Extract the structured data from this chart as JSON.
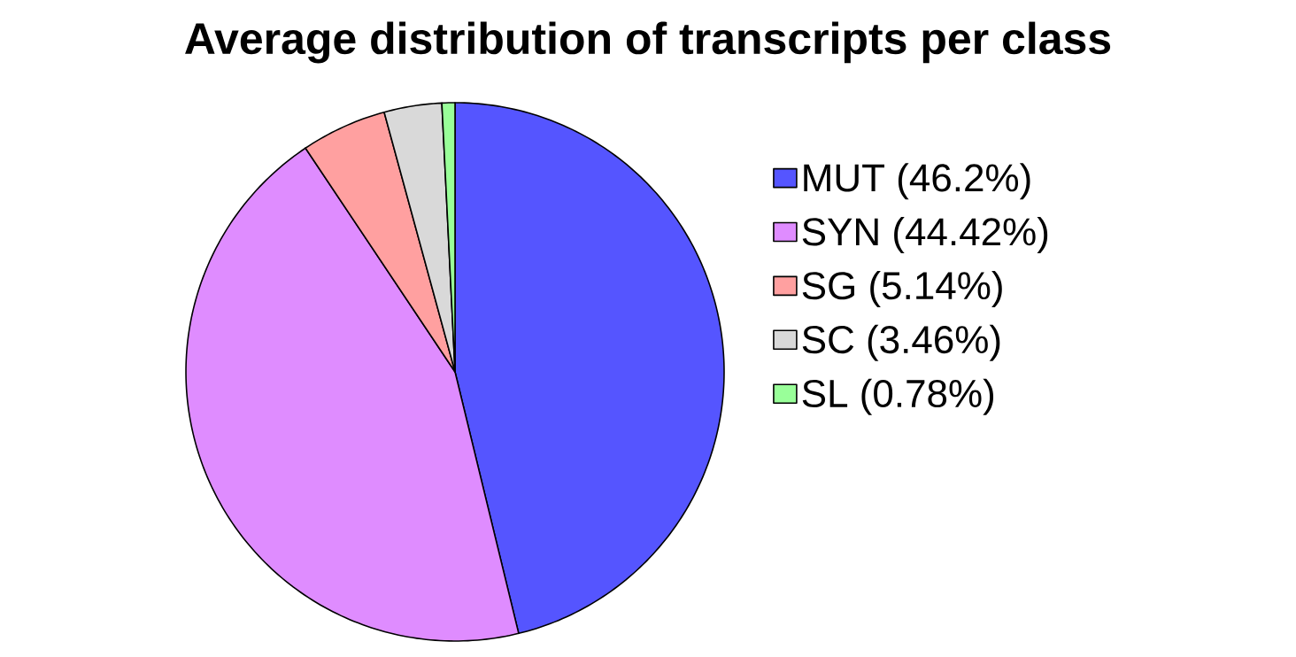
{
  "chart_data": {
    "type": "pie",
    "title": "Average distribution of transcripts per class",
    "categories": [
      "MUT (46.2%)",
      "SYN (44.42%)",
      "SG (5.14%)",
      "SC (3.46%)",
      "SL (0.78%)"
    ],
    "values": [
      46.2,
      44.42,
      5.14,
      3.46,
      0.78
    ],
    "colors": [
      "#5555ff",
      "#df8cff",
      "#ffa0a0",
      "#d9d9d9",
      "#99ff99"
    ],
    "legend": "right"
  }
}
